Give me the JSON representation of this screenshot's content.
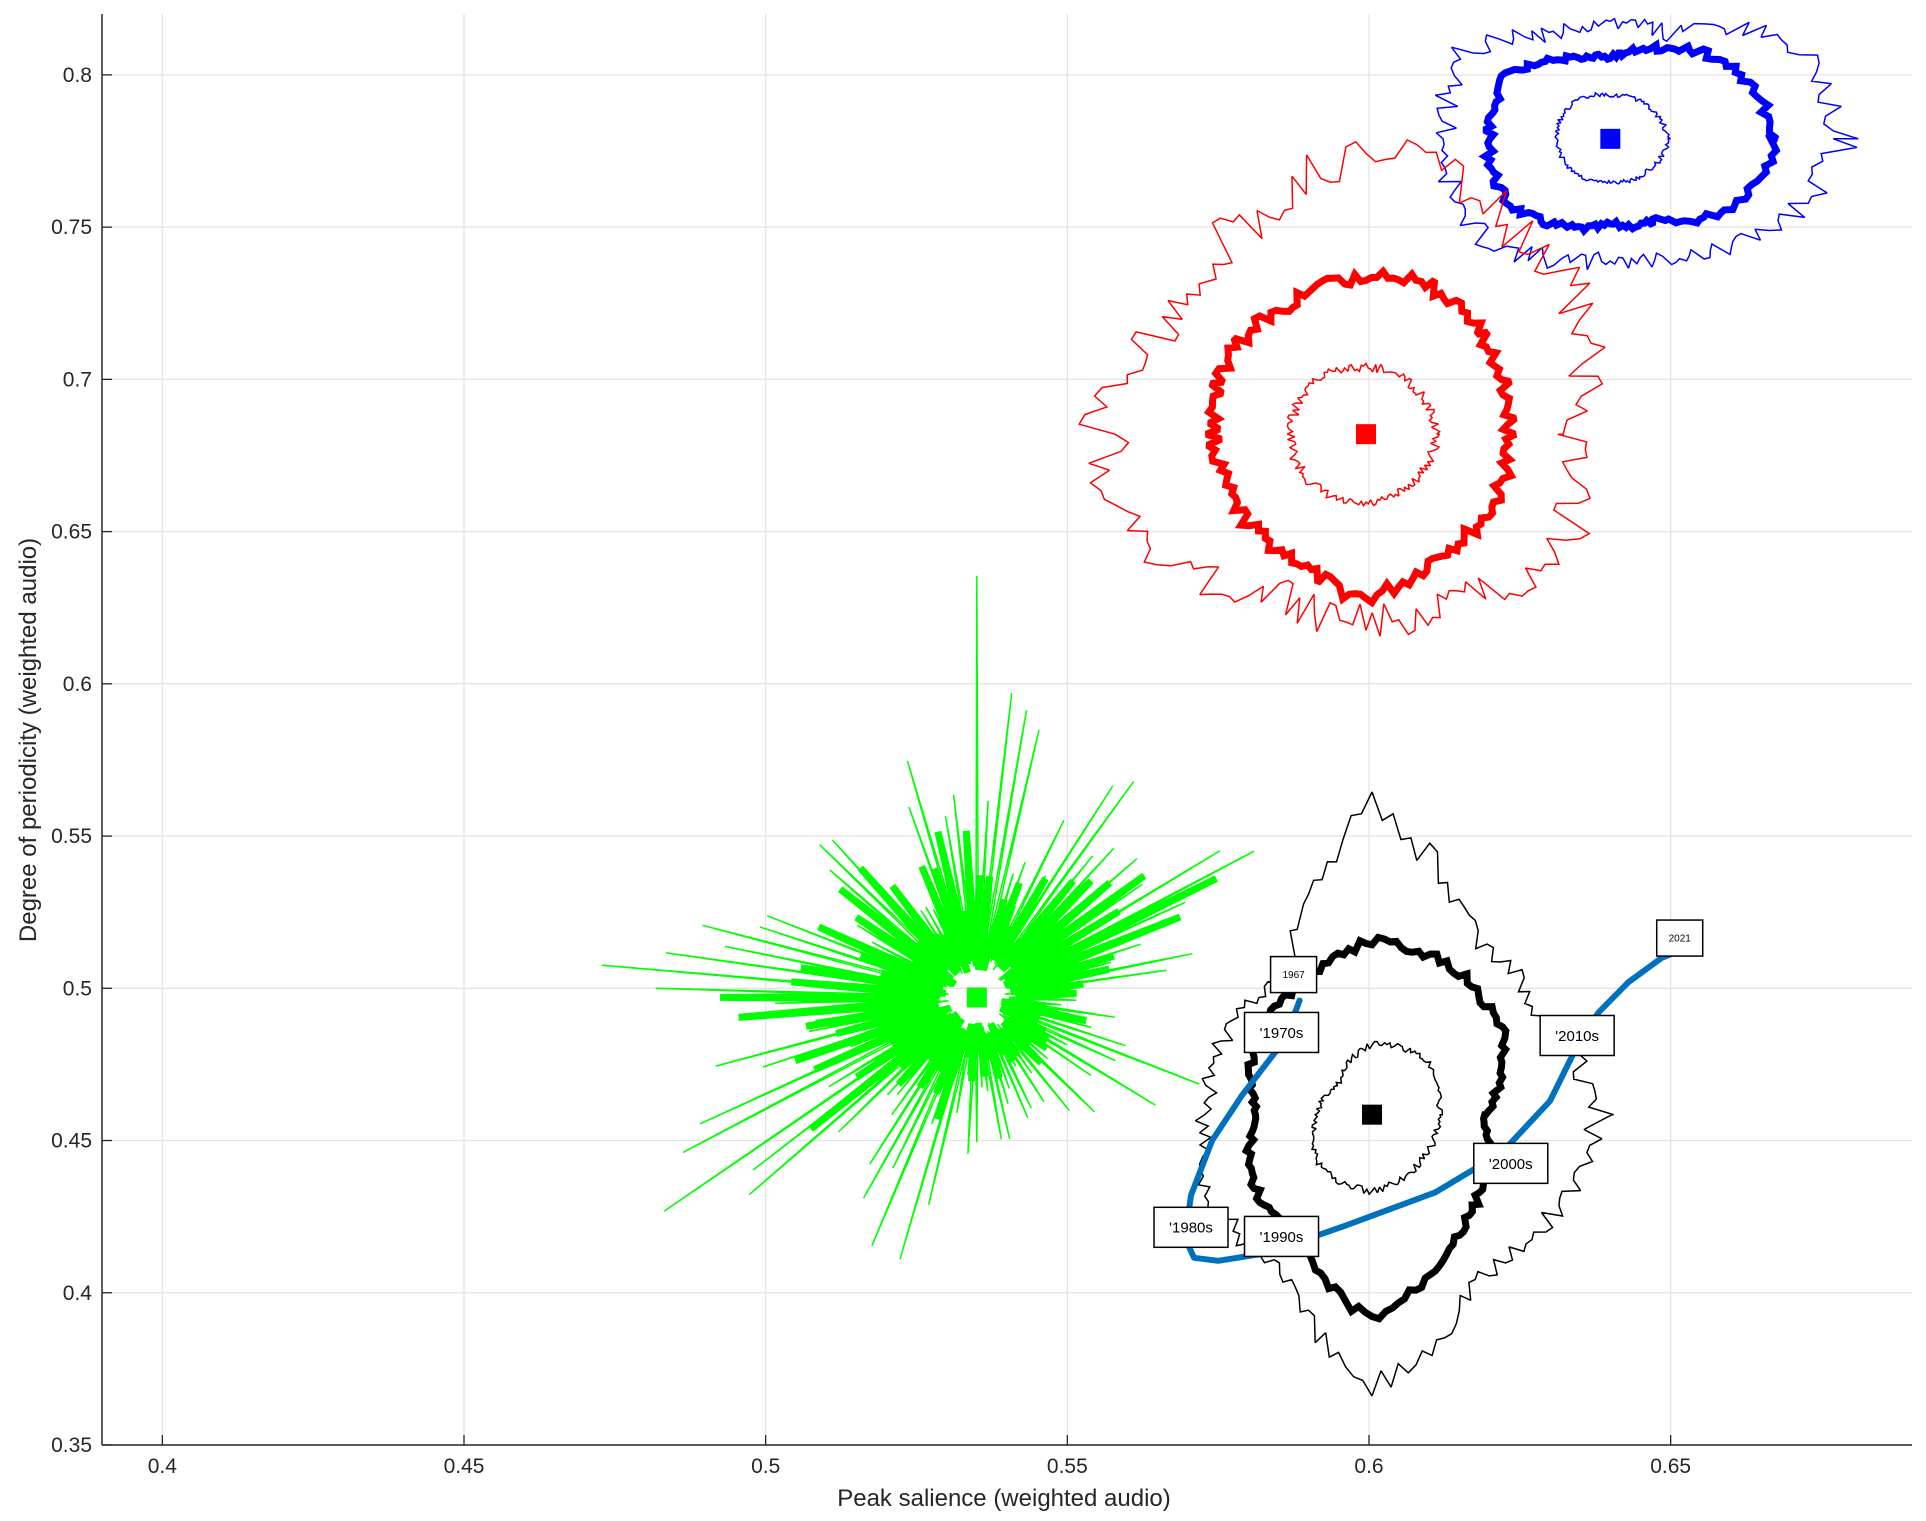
{
  "chart_data": {
    "type": "line",
    "title": "",
    "xlabel": "Peak salience (weighted audio)",
    "ylabel": "Degree of periodicity (weighted audio)",
    "xlim": [
      0.39,
      0.69
    ],
    "ylim": [
      0.35,
      0.82
    ],
    "grid": true,
    "xticks": [
      0.4,
      0.45,
      0.5,
      0.55,
      0.6,
      0.65
    ],
    "yticks": [
      0.35,
      0.4,
      0.45,
      0.5,
      0.55,
      0.6,
      0.65,
      0.7,
      0.75,
      0.8
    ],
    "xtick_labels": [
      "0.4",
      "0.45",
      "0.5",
      "0.55",
      "0.6",
      "0.65"
    ],
    "ytick_labels": [
      "0.35",
      "0.4",
      "0.45",
      "0.5",
      "0.55",
      "0.6",
      "0.65",
      "0.7",
      "0.75",
      "0.8"
    ],
    "clusters": [
      {
        "color": "#0000ff",
        "center": [
          0.64,
          0.779
        ],
        "rings": [
          {
            "style": "thin",
            "width": 1.5,
            "jag": 0.08,
            "seed": 11,
            "pts": [
              [
                0.0,
                0.0765
              ],
              [
                30,
                0.0655
              ],
              [
                60,
                0.04
              ],
              [
                90,
                0.037
              ],
              [
                120,
                0.039
              ],
              [
                150,
                0.056
              ],
              [
                180,
                0.054
              ],
              [
                210,
                0.055
              ],
              [
                240,
                0.045
              ],
              [
                270,
                0.039
              ],
              [
                300,
                0.044
              ],
              [
                330,
                0.06
              ]
            ]
          },
          {
            "style": "thick",
            "width": 7,
            "jag": 0.04,
            "seed": 7,
            "pts": [
              [
                0,
                0.0545
              ],
              [
                30,
                0.047
              ],
              [
                60,
                0.034
              ],
              [
                90,
                0.0265
              ],
              [
                120,
                0.03
              ],
              [
                150,
                0.04
              ],
              [
                180,
                0.04
              ],
              [
                210,
                0.04
              ],
              [
                240,
                0.033
              ],
              [
                270,
                0.028
              ],
              [
                300,
                0.031
              ],
              [
                330,
                0.045
              ]
            ]
          },
          {
            "style": "thin",
            "width": 1.5,
            "jag": 0.05,
            "seed": 5,
            "pts": [
              [
                0,
                0.019
              ],
              [
                45,
                0.016
              ],
              [
                90,
                0.014
              ],
              [
                135,
                0.017
              ],
              [
                180,
                0.018
              ],
              [
                225,
                0.016
              ],
              [
                270,
                0.014
              ],
              [
                315,
                0.016
              ]
            ]
          }
        ]
      },
      {
        "color": "#ff0000",
        "center": [
          0.5995,
          0.682
        ],
        "rings": [
          {
            "style": "thin",
            "width": 1.5,
            "jag": 0.1,
            "seed": 21,
            "pts": [
              [
                0,
                0.068
              ],
              [
                30,
                0.08
              ],
              [
                60,
                0.085
              ],
              [
                90,
                0.092
              ],
              [
                120,
                0.08
              ],
              [
                150,
                0.076
              ],
              [
                180,
                0.087
              ],
              [
                210,
                0.08
              ],
              [
                240,
                0.06
              ],
              [
                270,
                0.062
              ],
              [
                300,
                0.062
              ],
              [
                330,
                0.075
              ]
            ]
          },
          {
            "style": "thick",
            "width": 7,
            "jag": 0.05,
            "seed": 17,
            "pts": [
              [
                0,
                0.047
              ],
              [
                30,
                0.049
              ],
              [
                60,
                0.053
              ],
              [
                90,
                0.052
              ],
              [
                120,
                0.049
              ],
              [
                150,
                0.052
              ],
              [
                180,
                0.05
              ],
              [
                210,
                0.049
              ],
              [
                240,
                0.047
              ],
              [
                270,
                0.054
              ],
              [
                300,
                0.046
              ],
              [
                330,
                0.048
              ]
            ]
          },
          {
            "style": "thin",
            "width": 1.5,
            "jag": 0.07,
            "seed": 13,
            "pts": [
              [
                0,
                0.023
              ],
              [
                45,
                0.022
              ],
              [
                90,
                0.022
              ],
              [
                135,
                0.024
              ],
              [
                180,
                0.025
              ],
              [
                225,
                0.024
              ],
              [
                270,
                0.023
              ],
              [
                315,
                0.022
              ]
            ]
          }
        ]
      },
      {
        "color": "#00ff00",
        "center": [
          0.535,
          0.497
        ],
        "rings": [
          {
            "style": "spikes",
            "width": 1.5,
            "seed": 31,
            "n": 220,
            "base": 0.009,
            "pts": [
              [
                0,
                0.06
              ],
              [
                18,
                0.09
              ],
              [
                25,
                0.14
              ],
              [
                32,
                0.1
              ],
              [
                40,
                0.08
              ],
              [
                55,
                0.09
              ],
              [
                70,
                0.06
              ],
              [
                88,
                0.17
              ],
              [
                100,
                0.1
              ],
              [
                110,
                0.08
              ],
              [
                125,
                0.07
              ],
              [
                138,
                0.08
              ],
              [
                150,
                0.07
              ],
              [
                160,
                0.1
              ],
              [
                172,
                0.12
              ],
              [
                180,
                0.14
              ],
              [
                188,
                0.12
              ],
              [
                197,
                0.12
              ],
              [
                205,
                0.12
              ],
              [
                212,
                0.14
              ],
              [
                222,
                0.12
              ],
              [
                235,
                0.07
              ],
              [
                250,
                0.1
              ],
              [
                265,
                0.06
              ],
              [
                280,
                0.07
              ],
              [
                300,
                0.05
              ],
              [
                315,
                0.06
              ],
              [
                330,
                0.08
              ],
              [
                345,
                0.08
              ]
            ]
          },
          {
            "style": "spikes-thick",
            "width": 7,
            "seed": 37,
            "n": 150,
            "base": 0.008,
            "pts": [
              [
                0,
                0.03
              ],
              [
                15,
                0.05
              ],
              [
                25,
                0.1
              ],
              [
                35,
                0.07
              ],
              [
                55,
                0.06
              ],
              [
                80,
                0.03
              ],
              [
                95,
                0.09
              ],
              [
                110,
                0.05
              ],
              [
                140,
                0.06
              ],
              [
                160,
                0.07
              ],
              [
                170,
                0.08
              ],
              [
                180,
                0.1
              ],
              [
                190,
                0.09
              ],
              [
                200,
                0.09
              ],
              [
                210,
                0.09
              ],
              [
                225,
                0.06
              ],
              [
                250,
                0.05
              ],
              [
                270,
                0.03
              ],
              [
                295,
                0.03
              ],
              [
                320,
                0.04
              ],
              [
                345,
                0.05
              ]
            ]
          }
        ]
      },
      {
        "color": "#000000",
        "center": [
          0.6005,
          0.4585
        ],
        "rings": [
          {
            "style": "thin",
            "width": 1.5,
            "jag": 0.06,
            "seed": 41,
            "pts": [
              [
                0,
                0.075
              ],
              [
                30,
                0.063
              ],
              [
                60,
                0.068
              ],
              [
                90,
                0.1
              ],
              [
                120,
                0.054
              ],
              [
                150,
                0.054
              ],
              [
                180,
                0.055
              ],
              [
                210,
                0.06
              ],
              [
                240,
                0.058
              ],
              [
                270,
                0.09
              ],
              [
                300,
                0.064
              ],
              [
                330,
                0.067
              ]
            ]
          },
          {
            "style": "thick",
            "width": 7,
            "jag": 0.03,
            "seed": 43,
            "pts": [
              [
                0,
                0.037
              ],
              [
                30,
                0.05
              ],
              [
                60,
                0.055
              ],
              [
                90,
                0.057
              ],
              [
                120,
                0.048
              ],
              [
                150,
                0.045
              ],
              [
                180,
                0.038
              ],
              [
                210,
                0.045
              ],
              [
                240,
                0.048
              ],
              [
                270,
                0.067
              ],
              [
                300,
                0.05
              ],
              [
                330,
                0.042
              ]
            ]
          },
          {
            "style": "thin",
            "width": 1.5,
            "jag": 0.05,
            "seed": 47,
            "pts": [
              [
                0,
                0.022
              ],
              [
                45,
                0.025
              ],
              [
                90,
                0.023
              ],
              [
                135,
                0.015
              ],
              [
                180,
                0.018
              ],
              [
                225,
                0.024
              ],
              [
                270,
                0.025
              ],
              [
                315,
                0.022
              ]
            ]
          }
        ]
      }
    ],
    "trend_line": {
      "color": "#0072bd",
      "width": 6,
      "points": [
        [
          0.5885,
          0.496
        ],
        [
          0.586,
          0.483
        ],
        [
          0.579,
          0.465
        ],
        [
          0.574,
          0.45
        ],
        [
          0.5705,
          0.432
        ],
        [
          0.5695,
          0.418
        ],
        [
          0.571,
          0.4115
        ],
        [
          0.575,
          0.4105
        ],
        [
          0.583,
          0.413
        ],
        [
          0.596,
          0.422
        ],
        [
          0.611,
          0.433
        ],
        [
          0.622,
          0.446
        ],
        [
          0.63,
          0.463
        ],
        [
          0.634,
          0.479
        ],
        [
          0.638,
          0.492
        ],
        [
          0.643,
          0.502
        ],
        [
          0.6485,
          0.51
        ],
        [
          0.651,
          0.512
        ]
      ]
    },
    "annotations": [
      {
        "text": "1967",
        "x": 0.5875,
        "y": 0.5045,
        "size": "small"
      },
      {
        "text": "'1970s",
        "x": 0.5855,
        "y": 0.4855,
        "size": "large"
      },
      {
        "text": "'1980s",
        "x": 0.5705,
        "y": 0.4215,
        "size": "large"
      },
      {
        "text": "'1990s",
        "x": 0.5855,
        "y": 0.4185,
        "size": "large"
      },
      {
        "text": "'2000s",
        "x": 0.6235,
        "y": 0.4425,
        "size": "large"
      },
      {
        "text": "'2010s",
        "x": 0.6345,
        "y": 0.4845,
        "size": "large"
      },
      {
        "text": "2021",
        "x": 0.6515,
        "y": 0.5165,
        "size": "small"
      }
    ]
  }
}
